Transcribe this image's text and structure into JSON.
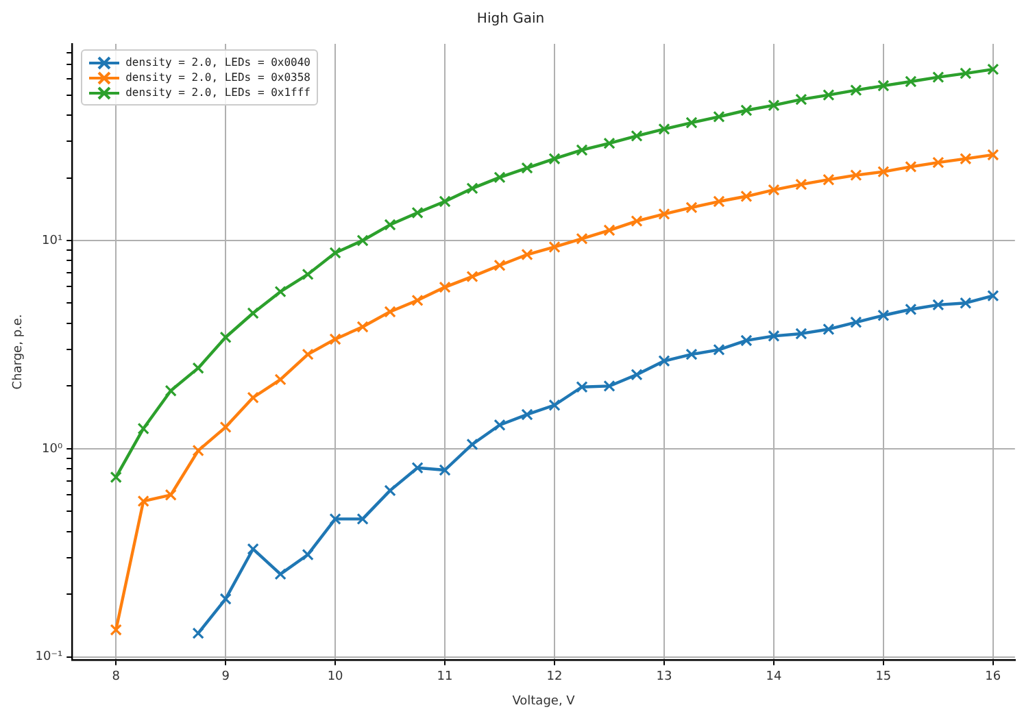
{
  "chart_data": {
    "type": "line",
    "title": "High Gain",
    "xlabel": "Voltage, V",
    "ylabel": "Charge, p.e.",
    "x": [
      8,
      8.25,
      8.5,
      8.75,
      9,
      9.25,
      9.5,
      9.75,
      10,
      10.25,
      10.5,
      10.75,
      11,
      11.25,
      11.5,
      11.75,
      12,
      12.25,
      12.5,
      12.75,
      13,
      13.25,
      13.5,
      13.75,
      14,
      14.25,
      14.5,
      14.75,
      15,
      15.25,
      15.5,
      15.75,
      16
    ],
    "series": [
      {
        "name": "density = 2.0, LEDs = 0x0040",
        "color": "#1f77b4",
        "x": [
          8.75,
          9,
          9.25,
          9.5,
          9.75,
          10,
          10.25,
          10.5,
          10.75,
          11,
          11.25,
          11.5,
          11.75,
          12,
          12.25,
          12.5,
          12.75,
          13,
          13.25,
          13.5,
          13.75,
          14,
          14.25,
          14.5,
          14.75,
          15,
          15.25,
          15.5,
          15.75,
          16
        ],
        "values": [
          0.13,
          0.19,
          0.33,
          0.25,
          0.31,
          0.46,
          0.46,
          0.63,
          0.81,
          0.79,
          1.05,
          1.3,
          1.46,
          1.62,
          1.98,
          2.0,
          2.27,
          2.64,
          2.84,
          2.99,
          3.31,
          3.48,
          3.57,
          3.75,
          4.05,
          4.37,
          4.67,
          4.91,
          5.01,
          5.43
        ]
      },
      {
        "name": "density = 2.0, LEDs = 0x0358",
        "color": "#ff7f0e",
        "values": [
          0.135,
          0.56,
          0.6,
          0.98,
          1.27,
          1.76,
          2.15,
          2.84,
          3.36,
          3.85,
          4.55,
          5.16,
          5.97,
          6.71,
          7.6,
          8.56,
          9.31,
          10.2,
          11.2,
          12.4,
          13.4,
          14.4,
          15.4,
          16.3,
          17.5,
          18.6,
          19.6,
          20.6,
          21.4,
          22.6,
          23.7,
          24.7,
          25.8
        ]
      },
      {
        "name": "density = 2.0, LEDs = 0x1fff",
        "color": "#2ca02c",
        "values": [
          0.73,
          1.25,
          1.9,
          2.44,
          3.43,
          4.48,
          5.68,
          6.88,
          8.73,
          10.0,
          11.9,
          13.6,
          15.4,
          17.8,
          20.1,
          22.3,
          24.7,
          27.2,
          29.3,
          31.8,
          34.3,
          36.8,
          39.3,
          42.2,
          44.6,
          47.6,
          50.0,
          52.7,
          55.4,
          58.0,
          60.9,
          63.5,
          66.4
        ]
      }
    ],
    "log": "y",
    "xlim": [
      7.6,
      16.2
    ],
    "xticks": [
      8,
      9,
      10,
      11,
      12,
      13,
      14,
      15,
      16
    ],
    "ylim": [
      0.097,
      88
    ],
    "yticks": [
      {
        "value": 0.1,
        "label": "10⁻¹"
      },
      {
        "value": 0.2,
        "label": null
      },
      {
        "value": 0.3,
        "label": null
      },
      {
        "value": 0.4,
        "label": null
      },
      {
        "value": 0.5,
        "label": null
      },
      {
        "value": 0.6,
        "label": null
      },
      {
        "value": 0.7,
        "label": null
      },
      {
        "value": 0.8,
        "label": null
      },
      {
        "value": 0.9,
        "label": null
      },
      {
        "value": 1,
        "label": "10⁰"
      },
      {
        "value": 2,
        "label": null
      },
      {
        "value": 3,
        "label": null
      },
      {
        "value": 4,
        "label": null
      },
      {
        "value": 5,
        "label": null
      },
      {
        "value": 6,
        "label": null
      },
      {
        "value": 7,
        "label": null
      },
      {
        "value": 8,
        "label": null
      },
      {
        "value": 9,
        "label": null
      },
      {
        "value": 10,
        "label": "10¹"
      },
      {
        "value": 20,
        "label": null
      },
      {
        "value": 30,
        "label": null
      },
      {
        "value": 40,
        "label": null
      },
      {
        "value": 50,
        "label": null
      },
      {
        "value": 60,
        "label": null
      },
      {
        "value": 70,
        "label": null
      },
      {
        "value": 80,
        "label": null
      }
    ],
    "grid": true,
    "legend": "top left",
    "marker": "cross",
    "line_style": "solid"
  }
}
